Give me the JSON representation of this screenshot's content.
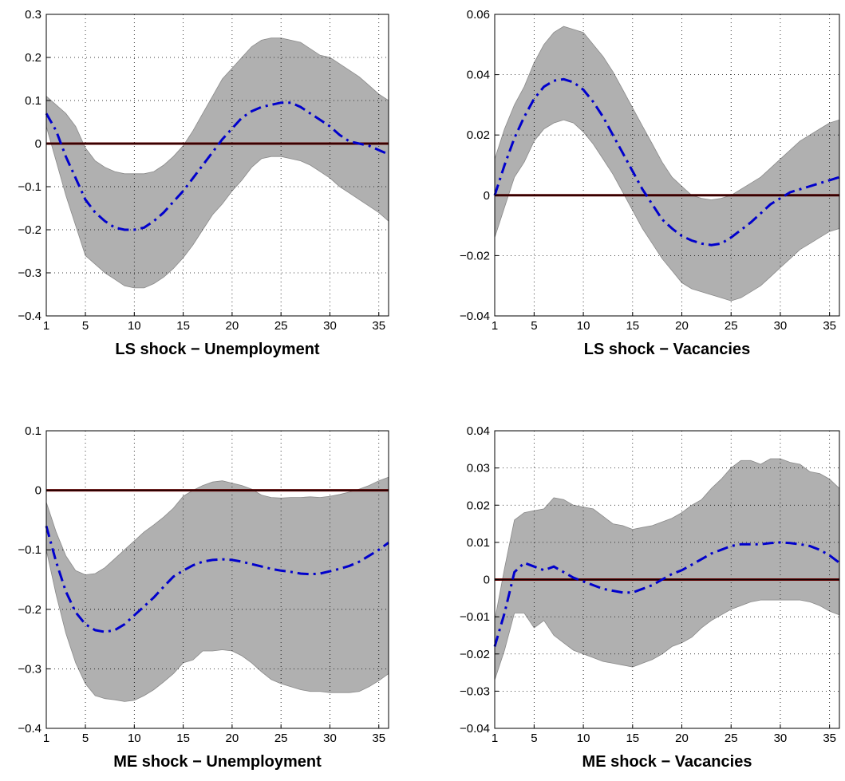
{
  "chart_data": [
    {
      "type": "line",
      "title": "LS shock − Unemployment",
      "xlim": [
        1,
        36
      ],
      "ylim": [
        -0.4,
        0.3
      ],
      "xticks": [
        1,
        5,
        10,
        15,
        20,
        25,
        30,
        35
      ],
      "xtick_labels": [
        "1",
        "5",
        "10",
        "15",
        "20",
        "25",
        "30",
        "35"
      ],
      "yticks": [
        -0.4,
        -0.3,
        -0.2,
        -0.1,
        0,
        0.1,
        0.2,
        0.3
      ],
      "ytick_labels": [
        "−0.4",
        "−0.3",
        "−0.2",
        "−0.1",
        "0",
        "0.1",
        "0.2",
        "0.3"
      ],
      "grid": true,
      "x": [
        1,
        2,
        3,
        4,
        5,
        6,
        7,
        8,
        9,
        10,
        11,
        12,
        13,
        14,
        15,
        16,
        17,
        18,
        19,
        20,
        21,
        22,
        23,
        24,
        25,
        26,
        27,
        28,
        29,
        30,
        31,
        32,
        33,
        34,
        35,
        36
      ],
      "median": [
        0.07,
        0.03,
        -0.03,
        -0.08,
        -0.13,
        -0.16,
        -0.18,
        -0.195,
        -0.2,
        -0.2,
        -0.195,
        -0.18,
        -0.16,
        -0.135,
        -0.11,
        -0.08,
        -0.05,
        -0.02,
        0.01,
        0.035,
        0.06,
        0.075,
        0.085,
        0.09,
        0.095,
        0.095,
        0.085,
        0.07,
        0.055,
        0.04,
        0.02,
        0.005,
        0.0,
        -0.005,
        -0.015,
        -0.025
      ],
      "upper": [
        0.11,
        0.09,
        0.07,
        0.04,
        -0.01,
        -0.04,
        -0.055,
        -0.065,
        -0.07,
        -0.07,
        -0.07,
        -0.065,
        -0.05,
        -0.03,
        -0.005,
        0.03,
        0.07,
        0.11,
        0.15,
        0.175,
        0.2,
        0.225,
        0.24,
        0.245,
        0.245,
        0.24,
        0.235,
        0.22,
        0.205,
        0.2,
        0.185,
        0.17,
        0.155,
        0.135,
        0.115,
        0.1
      ],
      "lower": [
        0.04,
        -0.04,
        -0.12,
        -0.19,
        -0.26,
        -0.28,
        -0.3,
        -0.315,
        -0.33,
        -0.335,
        -0.335,
        -0.325,
        -0.31,
        -0.29,
        -0.265,
        -0.235,
        -0.2,
        -0.165,
        -0.14,
        -0.11,
        -0.085,
        -0.055,
        -0.035,
        -0.03,
        -0.03,
        -0.035,
        -0.04,
        -0.05,
        -0.065,
        -0.08,
        -0.1,
        -0.115,
        -0.13,
        -0.145,
        -0.16,
        -0.18
      ],
      "zero_line": 0,
      "colors": {
        "band": "#b0b0b0",
        "median": "#0000cc",
        "zero": "#5a0000"
      }
    },
    {
      "type": "line",
      "title": "LS shock − Vacancies",
      "xlim": [
        1,
        36
      ],
      "ylim": [
        -0.04,
        0.06
      ],
      "xticks": [
        1,
        5,
        10,
        15,
        20,
        25,
        30,
        35
      ],
      "xtick_labels": [
        "1",
        "5",
        "10",
        "15",
        "20",
        "25",
        "30",
        "35"
      ],
      "yticks": [
        -0.04,
        -0.02,
        0,
        0.02,
        0.04,
        0.06
      ],
      "ytick_labels": [
        "−0.04",
        "−0.02",
        "0",
        "0.02",
        "0.04",
        "0.06"
      ],
      "grid": true,
      "x": [
        1,
        2,
        3,
        4,
        5,
        6,
        7,
        8,
        9,
        10,
        11,
        12,
        13,
        14,
        15,
        16,
        17,
        18,
        19,
        20,
        21,
        22,
        23,
        24,
        25,
        26,
        27,
        28,
        29,
        30,
        31,
        32,
        33,
        34,
        35,
        36
      ],
      "median": [
        0.0,
        0.01,
        0.019,
        0.026,
        0.032,
        0.036,
        0.038,
        0.0385,
        0.0375,
        0.035,
        0.031,
        0.026,
        0.02,
        0.014,
        0.008,
        0.002,
        -0.003,
        -0.008,
        -0.011,
        -0.0135,
        -0.015,
        -0.016,
        -0.0165,
        -0.016,
        -0.014,
        -0.0115,
        -0.009,
        -0.006,
        -0.003,
        -0.001,
        0.001,
        0.002,
        0.003,
        0.004,
        0.005,
        0.006
      ],
      "upper": [
        0.012,
        0.022,
        0.03,
        0.036,
        0.044,
        0.05,
        0.054,
        0.056,
        0.055,
        0.054,
        0.05,
        0.046,
        0.041,
        0.035,
        0.029,
        0.023,
        0.017,
        0.011,
        0.006,
        0.003,
        0.0,
        -0.001,
        -0.0015,
        -0.001,
        0.0,
        0.002,
        0.004,
        0.006,
        0.009,
        0.012,
        0.015,
        0.018,
        0.02,
        0.022,
        0.024,
        0.025
      ],
      "lower": [
        -0.014,
        -0.004,
        0.006,
        0.011,
        0.018,
        0.022,
        0.024,
        0.025,
        0.024,
        0.021,
        0.017,
        0.012,
        0.007,
        0.001,
        -0.005,
        -0.011,
        -0.016,
        -0.021,
        -0.025,
        -0.029,
        -0.031,
        -0.032,
        -0.033,
        -0.034,
        -0.035,
        -0.034,
        -0.032,
        -0.03,
        -0.027,
        -0.024,
        -0.021,
        -0.018,
        -0.016,
        -0.014,
        -0.012,
        -0.011
      ],
      "zero_line": 0,
      "colors": {
        "band": "#b0b0b0",
        "median": "#0000cc",
        "zero": "#5a0000"
      }
    },
    {
      "type": "line",
      "title": "ME shock − Unemployment",
      "xlim": [
        1,
        36
      ],
      "ylim": [
        -0.4,
        0.1
      ],
      "xticks": [
        1,
        5,
        10,
        15,
        20,
        25,
        30,
        35
      ],
      "xtick_labels": [
        "1",
        "5",
        "10",
        "15",
        "20",
        "25",
        "30",
        "35"
      ],
      "yticks": [
        -0.4,
        -0.3,
        -0.2,
        -0.1,
        0,
        0.1
      ],
      "ytick_labels": [
        "−0.4",
        "−0.3",
        "−0.2",
        "−0.1",
        "0",
        "0.1"
      ],
      "grid": true,
      "x": [
        1,
        2,
        3,
        4,
        5,
        6,
        7,
        8,
        9,
        10,
        11,
        12,
        13,
        14,
        15,
        16,
        17,
        18,
        19,
        20,
        21,
        22,
        23,
        24,
        25,
        26,
        27,
        28,
        29,
        30,
        31,
        32,
        33,
        34,
        35,
        36
      ],
      "median": [
        -0.06,
        -0.12,
        -0.17,
        -0.205,
        -0.225,
        -0.235,
        -0.238,
        -0.235,
        -0.225,
        -0.21,
        -0.195,
        -0.18,
        -0.162,
        -0.145,
        -0.135,
        -0.126,
        -0.12,
        -0.117,
        -0.116,
        -0.117,
        -0.12,
        -0.124,
        -0.128,
        -0.132,
        -0.135,
        -0.137,
        -0.14,
        -0.141,
        -0.14,
        -0.136,
        -0.132,
        -0.127,
        -0.12,
        -0.11,
        -0.1,
        -0.088
      ],
      "upper": [
        -0.02,
        -0.07,
        -0.11,
        -0.135,
        -0.142,
        -0.14,
        -0.13,
        -0.115,
        -0.1,
        -0.085,
        -0.07,
        -0.058,
        -0.045,
        -0.03,
        -0.01,
        0.0,
        0.008,
        0.014,
        0.016,
        0.012,
        0.008,
        0.002,
        -0.008,
        -0.012,
        -0.013,
        -0.012,
        -0.012,
        -0.011,
        -0.012,
        -0.01,
        -0.007,
        -0.003,
        0.002,
        0.008,
        0.016,
        0.022
      ],
      "lower": [
        -0.1,
        -0.175,
        -0.24,
        -0.29,
        -0.325,
        -0.345,
        -0.35,
        -0.352,
        -0.355,
        -0.353,
        -0.345,
        -0.335,
        -0.322,
        -0.308,
        -0.29,
        -0.285,
        -0.27,
        -0.27,
        -0.268,
        -0.27,
        -0.278,
        -0.29,
        -0.305,
        -0.318,
        -0.325,
        -0.33,
        -0.335,
        -0.338,
        -0.338,
        -0.34,
        -0.34,
        -0.34,
        -0.338,
        -0.33,
        -0.32,
        -0.308
      ],
      "zero_line": 0,
      "colors": {
        "band": "#b0b0b0",
        "median": "#0000cc",
        "zero": "#5a0000"
      }
    },
    {
      "type": "line",
      "title": "ME shock − Vacancies",
      "xlim": [
        1,
        36
      ],
      "ylim": [
        -0.04,
        0.04
      ],
      "xticks": [
        1,
        5,
        10,
        15,
        20,
        25,
        30,
        35
      ],
      "xtick_labels": [
        "1",
        "5",
        "10",
        "15",
        "20",
        "25",
        "30",
        "35"
      ],
      "yticks": [
        -0.04,
        -0.03,
        -0.02,
        -0.01,
        0,
        0.01,
        0.02,
        0.03,
        0.04
      ],
      "ytick_labels": [
        "−0.04",
        "−0.03",
        "−0.02",
        "−0.01",
        "0",
        "0.01",
        "0.02",
        "0.03",
        "0.04"
      ],
      "grid": true,
      "x": [
        1,
        2,
        3,
        4,
        5,
        6,
        7,
        8,
        9,
        10,
        11,
        12,
        13,
        14,
        15,
        16,
        17,
        18,
        19,
        20,
        21,
        22,
        23,
        24,
        25,
        26,
        27,
        28,
        29,
        30,
        31,
        32,
        33,
        34,
        35,
        36
      ],
      "median": [
        -0.018,
        -0.009,
        0.002,
        0.0045,
        0.0035,
        0.0025,
        0.0035,
        0.002,
        0.0005,
        -0.0005,
        -0.0015,
        -0.0025,
        -0.003,
        -0.0035,
        -0.0035,
        -0.0025,
        -0.0015,
        0.0,
        0.0015,
        0.0025,
        0.004,
        0.0055,
        0.007,
        0.008,
        0.009,
        0.0095,
        0.0095,
        0.0095,
        0.0098,
        0.01,
        0.0098,
        0.0095,
        0.009,
        0.008,
        0.0065,
        0.0045
      ],
      "upper": [
        -0.011,
        0.003,
        0.016,
        0.018,
        0.0185,
        0.019,
        0.022,
        0.0215,
        0.02,
        0.0195,
        0.019,
        0.017,
        0.015,
        0.0145,
        0.0135,
        0.014,
        0.0145,
        0.0155,
        0.0165,
        0.018,
        0.02,
        0.0215,
        0.0245,
        0.027,
        0.03,
        0.032,
        0.032,
        0.031,
        0.0325,
        0.0325,
        0.0315,
        0.031,
        0.029,
        0.0285,
        0.027,
        0.0245
      ],
      "lower": [
        -0.027,
        -0.019,
        -0.009,
        -0.009,
        -0.013,
        -0.011,
        -0.015,
        -0.017,
        -0.019,
        -0.02,
        -0.021,
        -0.022,
        -0.0225,
        -0.023,
        -0.0235,
        -0.0225,
        -0.0215,
        -0.02,
        -0.018,
        -0.017,
        -0.0155,
        -0.013,
        -0.011,
        -0.0095,
        -0.008,
        -0.007,
        -0.006,
        -0.0055,
        -0.0055,
        -0.0055,
        -0.0055,
        -0.0055,
        -0.006,
        -0.007,
        -0.0085,
        -0.0095
      ],
      "zero_line": 0,
      "colors": {
        "band": "#b0b0b0",
        "median": "#0000cc",
        "zero": "#5a0000"
      }
    }
  ]
}
